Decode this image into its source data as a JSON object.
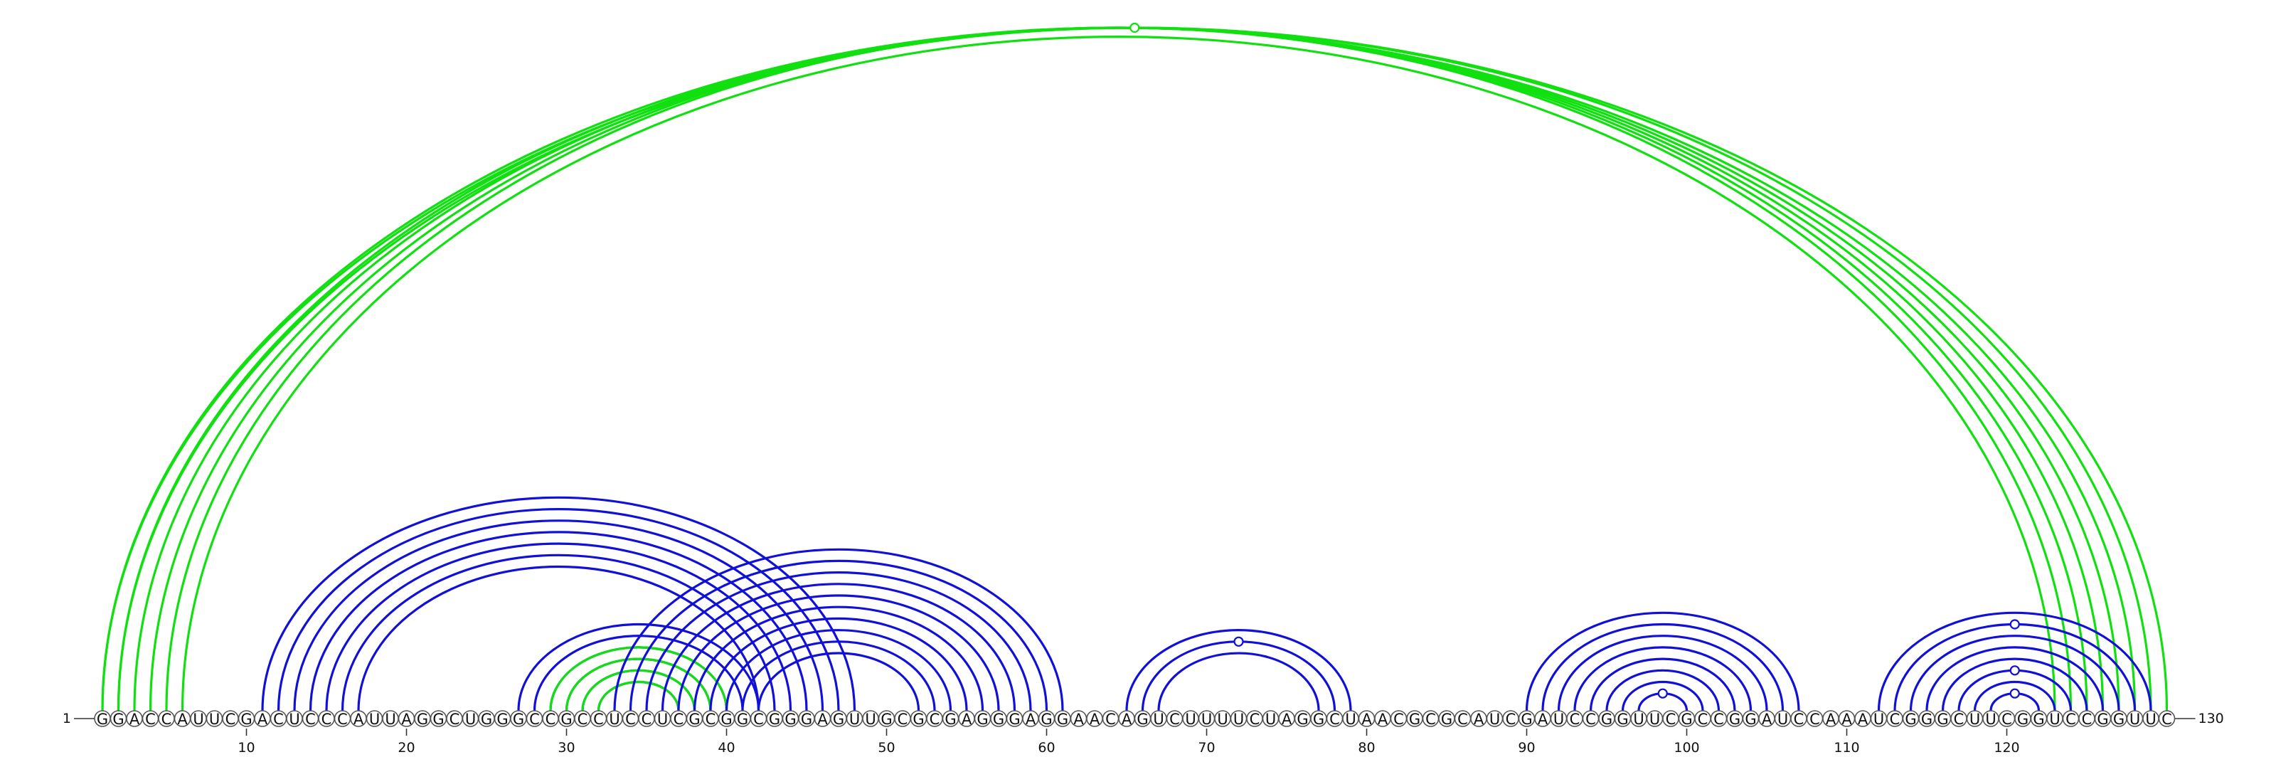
{
  "sequence": "GGACCAUUCGACUCCCAUUAGGCUGGGCCGCCUCCUCGCGGCGGGAGUUGCGCGAGGGAGGAACAGUCUUUUCUAGGCUAACGCGCAUCGAUCCGGUUCGCCGGAUCCAAAUCGGGCUUCGGUCCGGUUC",
  "start_label": "1",
  "end_label": "130",
  "ticks": [
    10,
    20,
    30,
    40,
    50,
    60,
    70,
    80,
    90,
    100,
    110,
    120
  ],
  "colors": {
    "primary_arcs": "#1010d8",
    "secondary_arcs": "#10e010",
    "nucleotide_outline": "#555555"
  },
  "arc_groups": [
    {
      "name": "long-range-helix",
      "color": "secondary_arcs",
      "pairs": [
        [
          1,
          128
        ],
        [
          2,
          127
        ],
        [
          3,
          126
        ],
        [
          4,
          125
        ],
        [
          5,
          124
        ],
        [
          6,
          123
        ]
      ]
    },
    {
      "name": "outer-long-arcs",
      "color": "secondary_arcs",
      "pairs": [
        [
          1,
          130
        ],
        [
          2,
          129
        ]
      ]
    },
    {
      "name": "helix-12-48",
      "color": "primary_arcs",
      "pairs": [
        [
          11,
          48
        ],
        [
          12,
          47
        ],
        [
          13,
          46
        ],
        [
          14,
          45
        ],
        [
          15,
          44
        ],
        [
          16,
          43
        ],
        [
          17,
          42
        ]
      ]
    },
    {
      "name": "helix-28-42",
      "color": "primary_arcs",
      "pairs": [
        [
          27,
          42
        ],
        [
          28,
          41
        ],
        [
          29,
          40
        ],
        [
          30,
          39
        ],
        [
          31,
          38
        ],
        [
          32,
          37
        ]
      ]
    },
    {
      "name": "inner-green-29-40",
      "color": "secondary_arcs",
      "pairs": [
        [
          29,
          40
        ],
        [
          30,
          39
        ],
        [
          31,
          38
        ],
        [
          32,
          37
        ]
      ]
    },
    {
      "name": "helix-33-60",
      "color": "primary_arcs",
      "pairs": [
        [
          33,
          61
        ],
        [
          34,
          60
        ],
        [
          35,
          59
        ],
        [
          36,
          58
        ],
        [
          37,
          57
        ],
        [
          38,
          56
        ],
        [
          39,
          55
        ],
        [
          40,
          54
        ],
        [
          41,
          53
        ],
        [
          42,
          52
        ]
      ]
    },
    {
      "name": "hairpin-66-78",
      "color": "primary_arcs",
      "pairs": [
        [
          65,
          79
        ],
        [
          66,
          78
        ],
        [
          67,
          77
        ]
      ]
    },
    {
      "name": "hairpin-91-105",
      "color": "primary_arcs",
      "pairs": [
        [
          90,
          107
        ],
        [
          91,
          106
        ],
        [
          92,
          105
        ],
        [
          93,
          104
        ],
        [
          94,
          103
        ],
        [
          95,
          102
        ],
        [
          96,
          101
        ],
        [
          97,
          100
        ]
      ]
    },
    {
      "name": "hairpin-113-126",
      "color": "primary_arcs",
      "pairs": [
        [
          112,
          129
        ],
        [
          113,
          128
        ],
        [
          114,
          127
        ],
        [
          115,
          126
        ],
        [
          116,
          125
        ],
        [
          117,
          124
        ],
        [
          118,
          123
        ],
        [
          119,
          122
        ]
      ]
    }
  ],
  "markers": [
    {
      "name": "loop-marker-top",
      "color": "secondary_arcs",
      "pair": [
        2,
        129
      ]
    },
    {
      "name": "loop-marker-70",
      "color": "primary_arcs",
      "pair": [
        66,
        78
      ]
    },
    {
      "name": "loop-marker-98",
      "color": "primary_arcs",
      "pair": [
        97,
        100
      ]
    },
    {
      "name": "loop-marker-118-a",
      "color": "primary_arcs",
      "pair": [
        113,
        128
      ]
    },
    {
      "name": "loop-marker-118-b",
      "color": "primary_arcs",
      "pair": [
        117,
        124
      ]
    },
    {
      "name": "loop-marker-118-c",
      "color": "primary_arcs",
      "pair": [
        119,
        122
      ]
    }
  ]
}
